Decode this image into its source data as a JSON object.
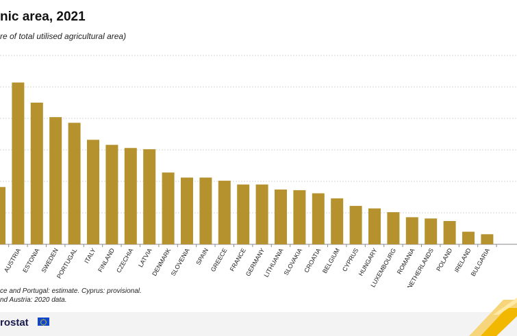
{
  "header": {
    "title": "nic area, 2021",
    "subtitle": "re of total utilised agricultural area)"
  },
  "notes": {
    "line1": "ce and Portugal: estimate.  Cyprus: provisional.",
    "line2": "nd Austria: 2020 data."
  },
  "footer": {
    "brand": "rostat"
  },
  "colors": {
    "bar": "#b5922d",
    "grid": "#d6d6d6",
    "axis": "#888888",
    "flag": "#0e47cb",
    "accent": "#f2b800"
  },
  "chart_data": {
    "type": "bar",
    "title": "nic area, 2021",
    "subtitle": "re of total utilised agricultural area)",
    "ylim": [
      0,
      30
    ],
    "grid": true,
    "categories": [
      "",
      "AUSTRIA",
      "ESTONIA",
      "SWEDEN",
      "PORTUGAL",
      "ITALY",
      "FINLAND",
      "CZECHIA",
      "LATVIA",
      "DENMARK",
      "SLOVENIA",
      "SPAIN",
      "GREECE",
      "FRANCE",
      "GERMANY",
      "LITHUANIA",
      "SLOVAKIA",
      "CROATIA",
      "BELGIUM",
      "CYPRUS",
      "HUNGARY",
      "LUXEMBOURG",
      "ROMANIA",
      "NETHERLANDS",
      "POLAND",
      "IRELAND",
      "BULGARIA"
    ],
    "values": [
      9.1,
      25.7,
      22.5,
      20.2,
      19.3,
      16.6,
      15.8,
      15.3,
      15.1,
      11.4,
      10.6,
      10.6,
      10.1,
      9.5,
      9.5,
      8.7,
      8.6,
      8.1,
      7.3,
      6.1,
      5.7,
      5.1,
      4.3,
      4.1,
      3.7,
      2.0,
      1.6
    ]
  }
}
